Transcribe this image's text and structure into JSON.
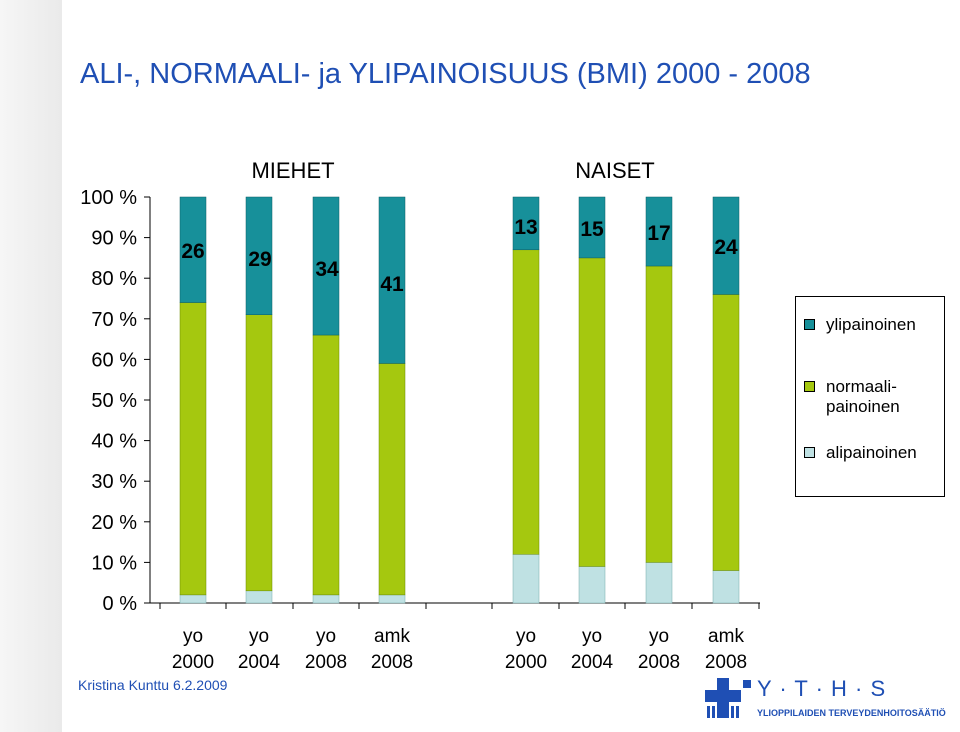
{
  "title": "ALI-, NORMAALI- ja YLIPAINOISUUS (BMI) 2000 - 2008",
  "footer": {
    "author": "Kristina Kunttu 6.2.2009"
  },
  "logo": {
    "letters": "Y · T · H · S",
    "subtitle": "YLIOPPILAIDEN TERVEYDENHOITOSÄÄTIÖ"
  },
  "colors": {
    "ylipainoinen": "#17909a",
    "normaalipainoinen": "#a5c80f",
    "alipainoinen": "#bfe1e3"
  },
  "chart_data": {
    "type": "bar",
    "stacked": true,
    "percent": true,
    "ylim": [
      0,
      100
    ],
    "yticks": [
      "0 %",
      "10 %",
      "20 %",
      "30 %",
      "40 %",
      "50 %",
      "60 %",
      "70 %",
      "80 %",
      "90 %",
      "100 %"
    ],
    "groups": [
      {
        "name": "MIEHET",
        "categories": [
          [
            "yo",
            "2000"
          ],
          [
            "yo",
            "2004"
          ],
          [
            "yo",
            "2008"
          ],
          [
            "amk",
            "2008"
          ]
        ],
        "alipainoinen": [
          2,
          3,
          2,
          2
        ],
        "normaalipainoinen": [
          72,
          68,
          64,
          57
        ],
        "ylipainoinen": [
          26,
          29,
          34,
          41
        ],
        "labels": [
          "26",
          "29",
          "34",
          "41"
        ]
      },
      {
        "name": "NAISET",
        "categories": [
          [
            "yo",
            "2000"
          ],
          [
            "yo",
            "2004"
          ],
          [
            "yo",
            "2008"
          ],
          [
            "amk",
            "2008"
          ]
        ],
        "alipainoinen": [
          12,
          9,
          10,
          8
        ],
        "normaalipainoinen": [
          75,
          76,
          73,
          68
        ],
        "ylipainoinen": [
          13,
          15,
          17,
          24
        ],
        "labels": [
          "13",
          "15",
          "17",
          "24"
        ]
      }
    ],
    "legend": {
      "position": "right",
      "items": [
        {
          "key": "ylipainoinen",
          "label": "ylipainoinen"
        },
        {
          "key": "normaalipainoinen",
          "label": "normaali-\npainoinen"
        },
        {
          "key": "alipainoinen",
          "label": "alipainoinen"
        }
      ]
    }
  }
}
